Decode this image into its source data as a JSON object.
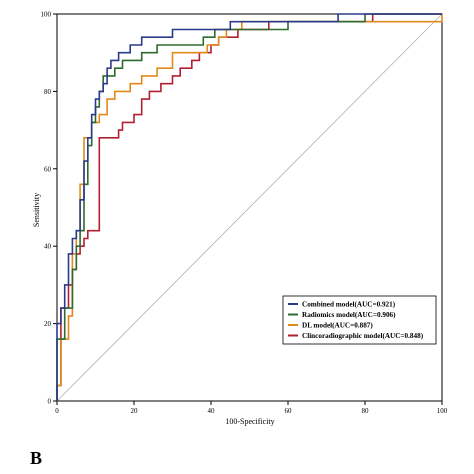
{
  "chart_data": {
    "type": "line",
    "xlabel": "100-Specificity",
    "ylabel": "Sensitivity",
    "xlim": [
      0,
      100
    ],
    "ylim": [
      0,
      100
    ],
    "x_ticks": [
      "0",
      "20",
      "40",
      "60",
      "80",
      "100"
    ],
    "y_ticks": [
      "0",
      "20",
      "40",
      "60",
      "80",
      "100"
    ],
    "grid": false,
    "legend_position": "bottom-right",
    "reference_line": {
      "from": [
        0,
        0
      ],
      "to": [
        100,
        100
      ],
      "color": "#b0b0b0"
    },
    "series": [
      {
        "name": "Combined model(AUC=0.921)",
        "color": "#2b3a8c",
        "points": [
          [
            0,
            0
          ],
          [
            0,
            20
          ],
          [
            1,
            20
          ],
          [
            1,
            24
          ],
          [
            2,
            24
          ],
          [
            2,
            30
          ],
          [
            3,
            30
          ],
          [
            3,
            38
          ],
          [
            4,
            38
          ],
          [
            4,
            42
          ],
          [
            5,
            42
          ],
          [
            5,
            44
          ],
          [
            6,
            44
          ],
          [
            6,
            52
          ],
          [
            7,
            52
          ],
          [
            7,
            62
          ],
          [
            8,
            62
          ],
          [
            8,
            68
          ],
          [
            9,
            68
          ],
          [
            9,
            74
          ],
          [
            10,
            74
          ],
          [
            10,
            78
          ],
          [
            11,
            78
          ],
          [
            11,
            80
          ],
          [
            12,
            80
          ],
          [
            12,
            82
          ],
          [
            13,
            82
          ],
          [
            13,
            86
          ],
          [
            14,
            86
          ],
          [
            14,
            88
          ],
          [
            16,
            88
          ],
          [
            16,
            90
          ],
          [
            19,
            90
          ],
          [
            19,
            92
          ],
          [
            22,
            92
          ],
          [
            22,
            94
          ],
          [
            30,
            94
          ],
          [
            30,
            96
          ],
          [
            45,
            96
          ],
          [
            45,
            98
          ],
          [
            73,
            98
          ],
          [
            73,
            100
          ],
          [
            100,
            100
          ]
        ]
      },
      {
        "name": "Radiomics model(AUC=0.906)",
        "color": "#2e6b2e",
        "points": [
          [
            0,
            0
          ],
          [
            0,
            16
          ],
          [
            2,
            16
          ],
          [
            2,
            24
          ],
          [
            4,
            24
          ],
          [
            4,
            34
          ],
          [
            5,
            34
          ],
          [
            5,
            40
          ],
          [
            6,
            40
          ],
          [
            6,
            44
          ],
          [
            7,
            44
          ],
          [
            7,
            56
          ],
          [
            8,
            56
          ],
          [
            8,
            66
          ],
          [
            9,
            66
          ],
          [
            9,
            72
          ],
          [
            10,
            72
          ],
          [
            10,
            76
          ],
          [
            11,
            76
          ],
          [
            11,
            80
          ],
          [
            12,
            80
          ],
          [
            12,
            84
          ],
          [
            15,
            84
          ],
          [
            15,
            86
          ],
          [
            17,
            86
          ],
          [
            17,
            88
          ],
          [
            22,
            88
          ],
          [
            22,
            90
          ],
          [
            26,
            90
          ],
          [
            26,
            92
          ],
          [
            38,
            92
          ],
          [
            38,
            94
          ],
          [
            41,
            94
          ],
          [
            41,
            96
          ],
          [
            60,
            96
          ],
          [
            60,
            98
          ],
          [
            80,
            98
          ],
          [
            80,
            100
          ],
          [
            100,
            100
          ]
        ]
      },
      {
        "name": "DL model(AUC=0.887)",
        "color": "#e08a1a",
        "points": [
          [
            0,
            0
          ],
          [
            0,
            4
          ],
          [
            1,
            4
          ],
          [
            1,
            16
          ],
          [
            3,
            16
          ],
          [
            3,
            22
          ],
          [
            4,
            22
          ],
          [
            4,
            38
          ],
          [
            5,
            38
          ],
          [
            5,
            44
          ],
          [
            6,
            44
          ],
          [
            6,
            56
          ],
          [
            7,
            56
          ],
          [
            7,
            68
          ],
          [
            9,
            68
          ],
          [
            9,
            72
          ],
          [
            11,
            72
          ],
          [
            11,
            74
          ],
          [
            13,
            74
          ],
          [
            13,
            78
          ],
          [
            15,
            78
          ],
          [
            15,
            80
          ],
          [
            19,
            80
          ],
          [
            19,
            82
          ],
          [
            22,
            82
          ],
          [
            22,
            84
          ],
          [
            26,
            84
          ],
          [
            26,
            86
          ],
          [
            30,
            86
          ],
          [
            30,
            90
          ],
          [
            39,
            90
          ],
          [
            39,
            92
          ],
          [
            42,
            92
          ],
          [
            42,
            94
          ],
          [
            44,
            94
          ],
          [
            44,
            96
          ],
          [
            48,
            96
          ],
          [
            48,
            98
          ],
          [
            100,
            98
          ],
          [
            100,
            100
          ]
        ]
      },
      {
        "name": "Clincoradiographic model(AUC=0.848)",
        "color": "#b22030",
        "points": [
          [
            0,
            0
          ],
          [
            0,
            4
          ],
          [
            1,
            4
          ],
          [
            1,
            24
          ],
          [
            3,
            24
          ],
          [
            3,
            30
          ],
          [
            4,
            30
          ],
          [
            4,
            34
          ],
          [
            5,
            34
          ],
          [
            5,
            38
          ],
          [
            6,
            38
          ],
          [
            6,
            40
          ],
          [
            7,
            40
          ],
          [
            7,
            42
          ],
          [
            8,
            42
          ],
          [
            8,
            44
          ],
          [
            11,
            44
          ],
          [
            11,
            68
          ],
          [
            16,
            68
          ],
          [
            16,
            70
          ],
          [
            17,
            70
          ],
          [
            17,
            72
          ],
          [
            20,
            72
          ],
          [
            20,
            74
          ],
          [
            22,
            74
          ],
          [
            22,
            78
          ],
          [
            24,
            78
          ],
          [
            24,
            80
          ],
          [
            27,
            80
          ],
          [
            27,
            82
          ],
          [
            30,
            82
          ],
          [
            30,
            84
          ],
          [
            32,
            84
          ],
          [
            32,
            86
          ],
          [
            35,
            86
          ],
          [
            35,
            88
          ],
          [
            37,
            88
          ],
          [
            37,
            90
          ],
          [
            40,
            90
          ],
          [
            40,
            92
          ],
          [
            42,
            92
          ],
          [
            42,
            94
          ],
          [
            47,
            94
          ],
          [
            47,
            96
          ],
          [
            55,
            96
          ],
          [
            55,
            98
          ],
          [
            82,
            98
          ],
          [
            82,
            100
          ],
          [
            100,
            100
          ]
        ]
      }
    ]
  },
  "panel_label": "B"
}
